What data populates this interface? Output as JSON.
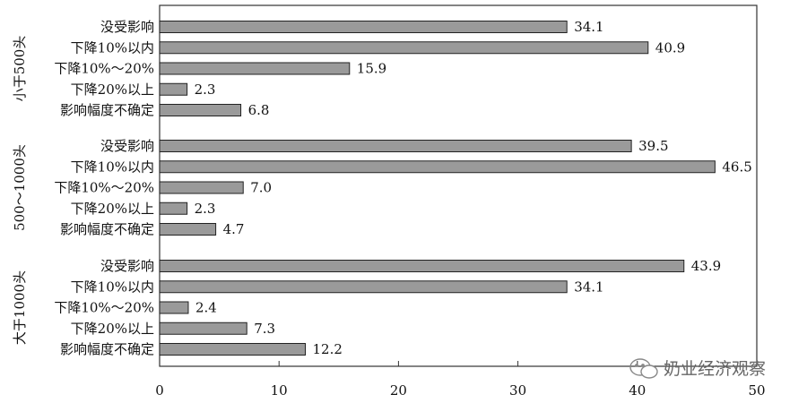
{
  "chart_data": {
    "type": "bar",
    "orientation": "horizontal",
    "xlim": [
      0,
      50
    ],
    "xticks": [
      0,
      10,
      20,
      30,
      40,
      50
    ],
    "grid": false,
    "bar_color": "#9a9a9a",
    "groups": [
      {
        "label": "小于500头",
        "categories": [
          "没受影响",
          "下降10%以内",
          "下降10%～20%",
          "下降20%以上",
          "影响幅度不确定"
        ],
        "values": [
          34.1,
          40.9,
          15.9,
          2.3,
          6.8
        ],
        "value_labels": [
          "34.1",
          "40.9",
          "15.9",
          "2.3",
          "6.8"
        ]
      },
      {
        "label": "500～1000头",
        "categories": [
          "没受影响",
          "下降10%以内",
          "下降10%～20%",
          "下降20%以上",
          "影响幅度不确定"
        ],
        "values": [
          39.5,
          46.5,
          7.0,
          2.3,
          4.7
        ],
        "value_labels": [
          "39.5",
          "46.5",
          "7.0",
          "2.3",
          "4.7"
        ]
      },
      {
        "label": "大于1000头",
        "categories": [
          "没受影响",
          "下降10%以内",
          "下降10%～20%",
          "下降20%以上",
          "影响幅度不确定"
        ],
        "values": [
          43.9,
          34.1,
          2.4,
          7.3,
          12.2
        ],
        "value_labels": [
          "43.9",
          "34.1",
          "2.4",
          "7.3",
          "12.2"
        ]
      }
    ]
  },
  "watermark": {
    "text": "奶业经济观察",
    "icon": "wechat-icon"
  }
}
